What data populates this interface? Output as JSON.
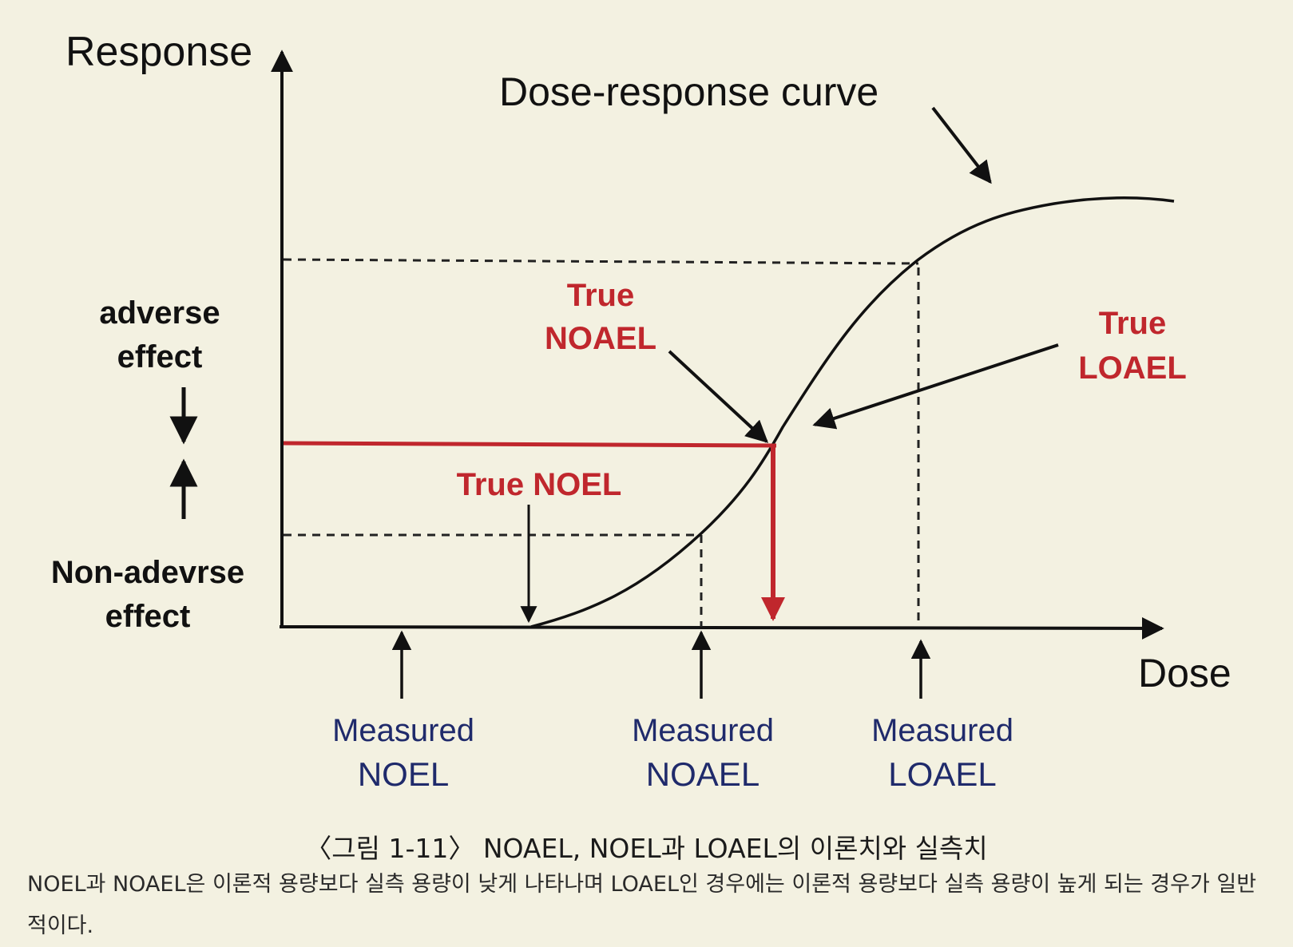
{
  "labels": {
    "y_axis": "Response",
    "x_axis": "Dose",
    "curve": "Dose-response curve",
    "adverse": [
      "adverse",
      "effect"
    ],
    "non_adverse": [
      "Non-adevrse",
      "effect"
    ],
    "true_noael": [
      "True",
      "NOAEL"
    ],
    "true_loael": [
      "True",
      "LOAEL"
    ],
    "true_noel": "True NOEL",
    "measured_noel": [
      "Measured",
      "NOEL"
    ],
    "measured_noael": [
      "Measured",
      "NOAEL"
    ],
    "measured_loael": [
      "Measured",
      "LOAEL"
    ]
  },
  "caption": "〈그림 1-11〉 NOAEL, NOEL과 LOAEL의 이론치와 실측치",
  "description": "NOEL과 NOAEL은 이론적 용량보다 실측 용량이 낮게 나타나며 LOAEL인 경우에는 이론적 용량보다 실측 용량이 높게 되는 경우가 일반적이다.",
  "colors": {
    "background": "#f3f1e1",
    "ink": "#111111",
    "red": "#c0272d",
    "blue": "#1f2a6b"
  }
}
